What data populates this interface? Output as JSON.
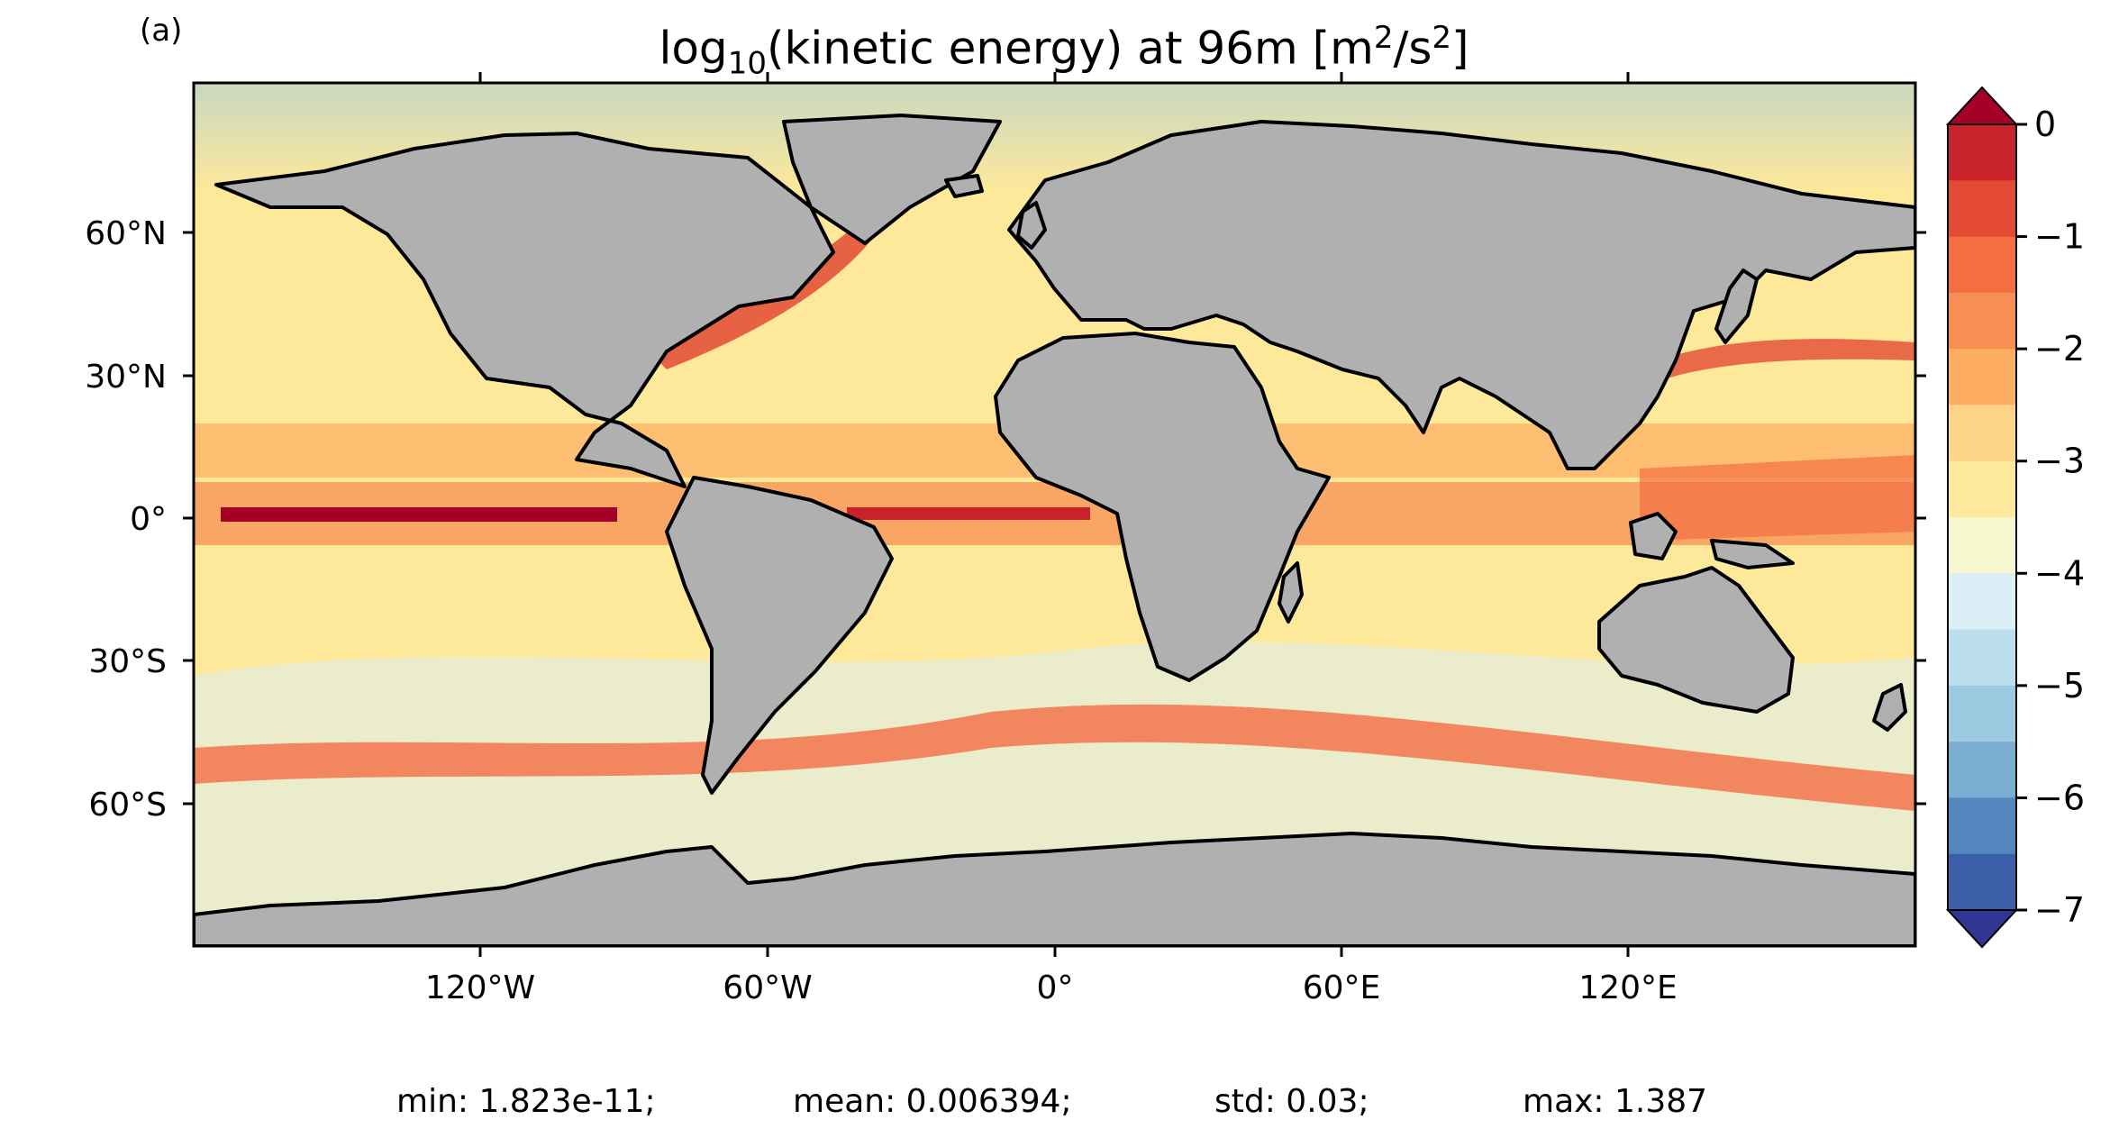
{
  "panel_label": "(a)",
  "title": {
    "prefix": "log",
    "prefix_sub": "10",
    "middle": "(kinetic energy) at 96m [m",
    "unit_sup1": "2",
    "unit_mid": "/s",
    "unit_sup2": "2",
    "suffix": "]"
  },
  "y_ticks": [
    "60°N",
    "30°N",
    "0°",
    "30°S",
    "60°S"
  ],
  "x_ticks": [
    "120°W",
    "60°W",
    "0°",
    "60°E",
    "120°E"
  ],
  "colorbar": {
    "ticks": [
      "0",
      "−1",
      "−2",
      "−3",
      "−4",
      "−5",
      "−6",
      "−7"
    ],
    "levels": [
      0,
      -0.5,
      -1,
      -1.5,
      -2,
      -2.5,
      -3,
      -3.5,
      -4,
      -4.5,
      -5,
      -5.5,
      -6,
      -6.5,
      -7
    ],
    "colors": [
      "#a50026",
      "#c8232a",
      "#e34a33",
      "#f46d43",
      "#f78f52",
      "#fdae61",
      "#fdd488",
      "#fee89a",
      "#f7f7d0",
      "#dbeef6",
      "#bcdfec",
      "#9ccae1",
      "#79aed2",
      "#5386bd",
      "#3a5fa8",
      "#313695"
    ],
    "extend": "both"
  },
  "stats": {
    "min": "min: 1.823e-11;",
    "mean": "mean: 0.006394;",
    "std": "std: 0.03;",
    "max": "max: 1.387"
  },
  "map_colors": {
    "land": "#b0b0b0",
    "coast": "#000000",
    "ocean_base": "#fee89a"
  }
}
